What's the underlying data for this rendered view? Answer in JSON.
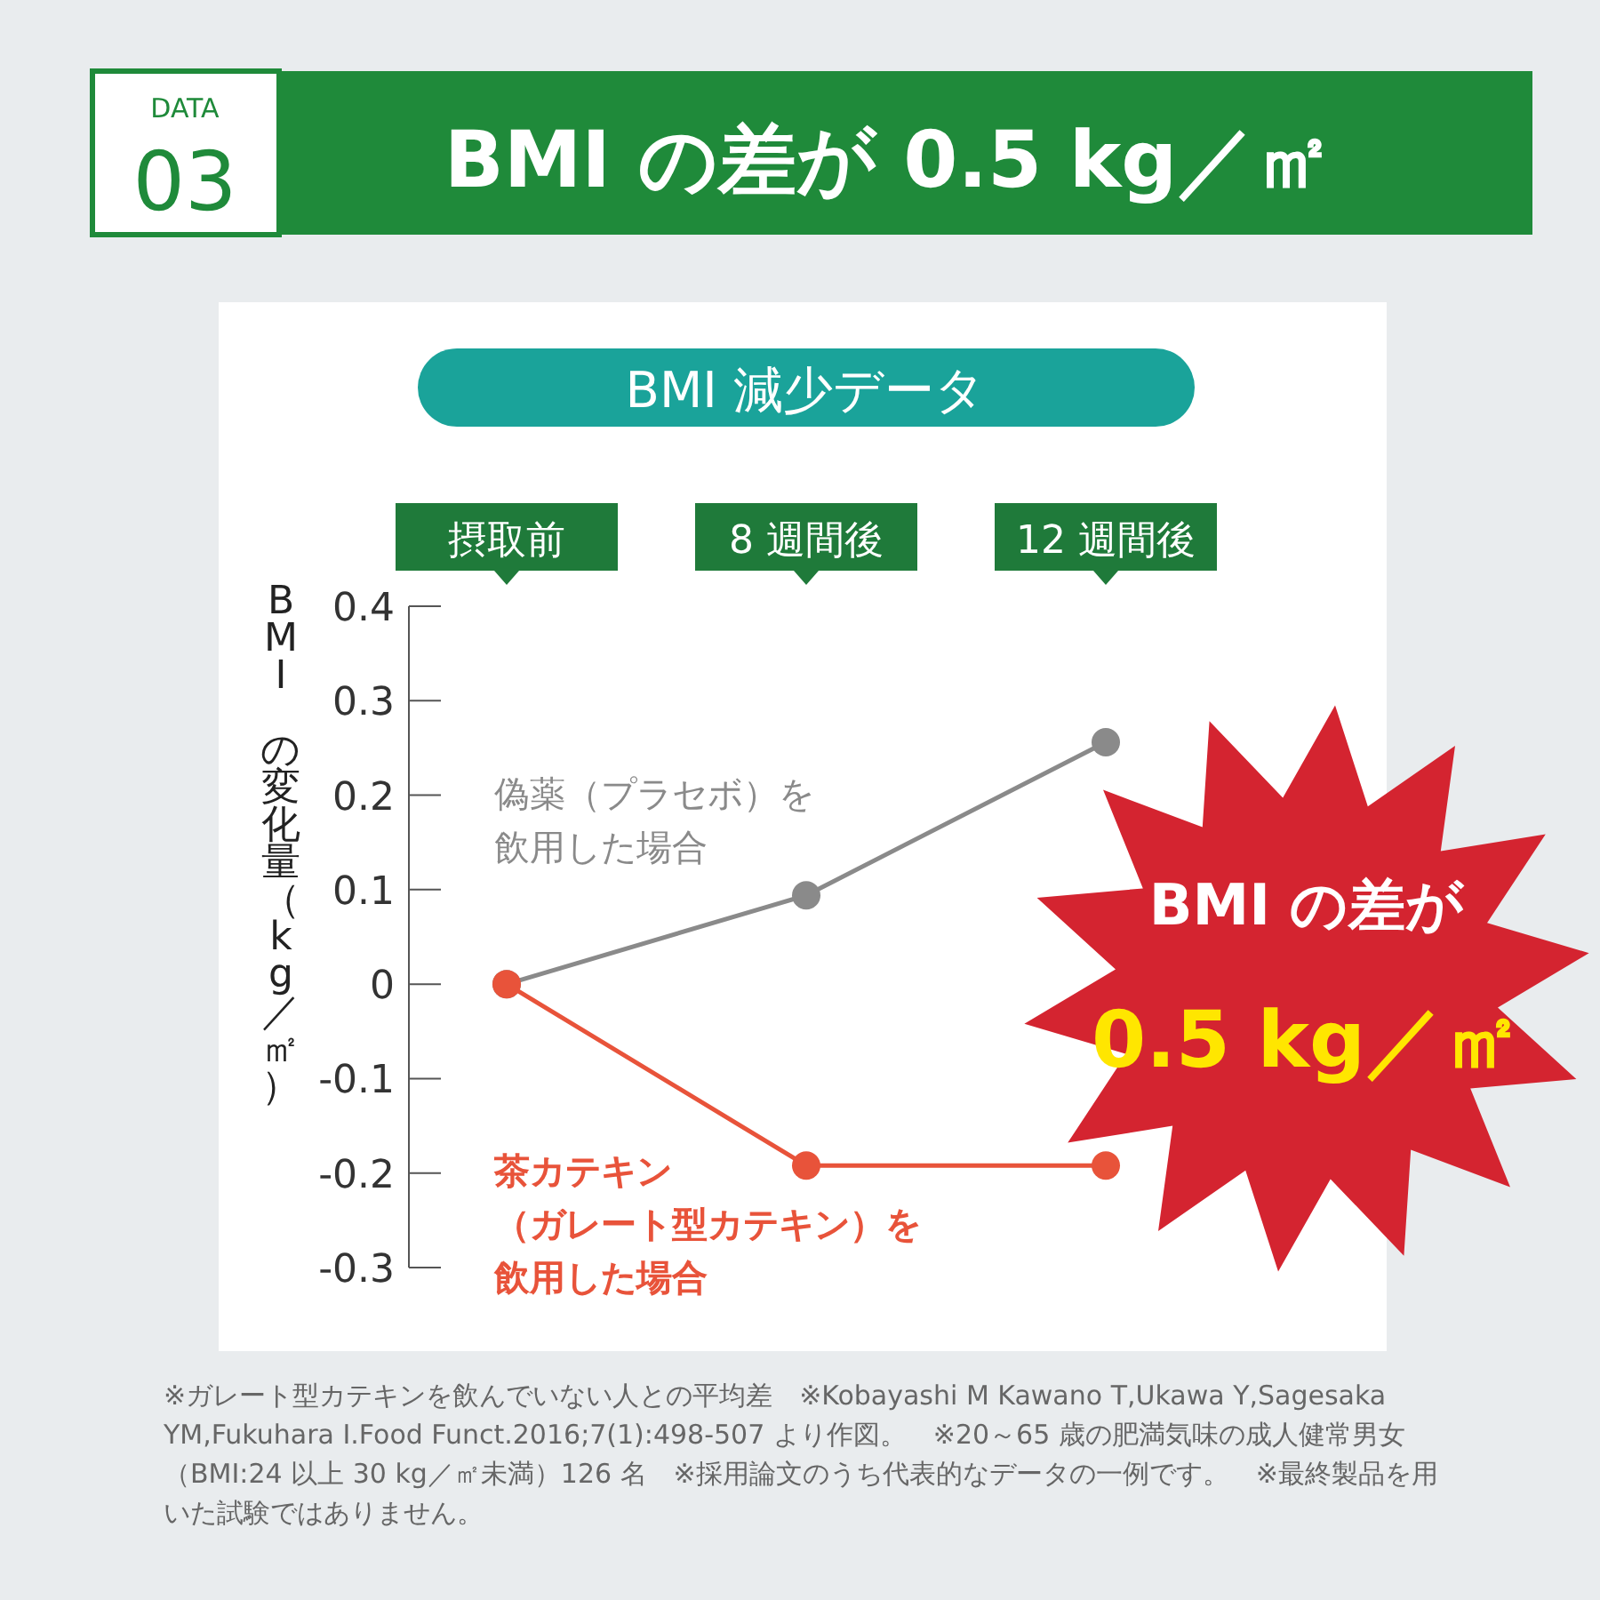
{
  "chart_data": {
    "type": "line",
    "title": "BMI の差が 0.5 kg／㎡",
    "subtitle": "BMI 減少データ",
    "ylabel": "BMI の変化量（kg／㎡）",
    "categories": [
      "摂取前",
      "8 週間後",
      "12 週間後"
    ],
    "series": [
      {
        "name": "偽薬（プラセボ）を飲用した場合",
        "color": "#8a8a8a",
        "values": [
          0,
          0.094,
          0.256
        ]
      },
      {
        "name": "茶カテキン（ガレート型カテキン）を飲用した場合",
        "color": "#e8533a",
        "values": [
          0,
          -0.192,
          -0.192
        ]
      }
    ],
    "ylim": [
      -0.3,
      0.4
    ],
    "yticks": [
      -0.3,
      -0.2,
      -0.1,
      0,
      0.1,
      0.2,
      0.3,
      0.4
    ],
    "marker": "circle",
    "annotations": [
      "DATA 03",
      "BMI の差が 0.5 kg／㎡",
      "※ガレート型カテキンを飲んでいない人との平均差　※Kobayashi M Kawano T,Ukawa Y,Sagesaka YM,Fukuhara I.Food Funct.2016;7(1):498-507 より作図。　※20～65 歳の肥満気味の成人健常男女（BMI:24 以上 30 kg／㎡未満）126 名　※採用論文のうち代表的なデータの一例です。　※最終製品を用いた試験ではありません。"
    ]
  }
}
